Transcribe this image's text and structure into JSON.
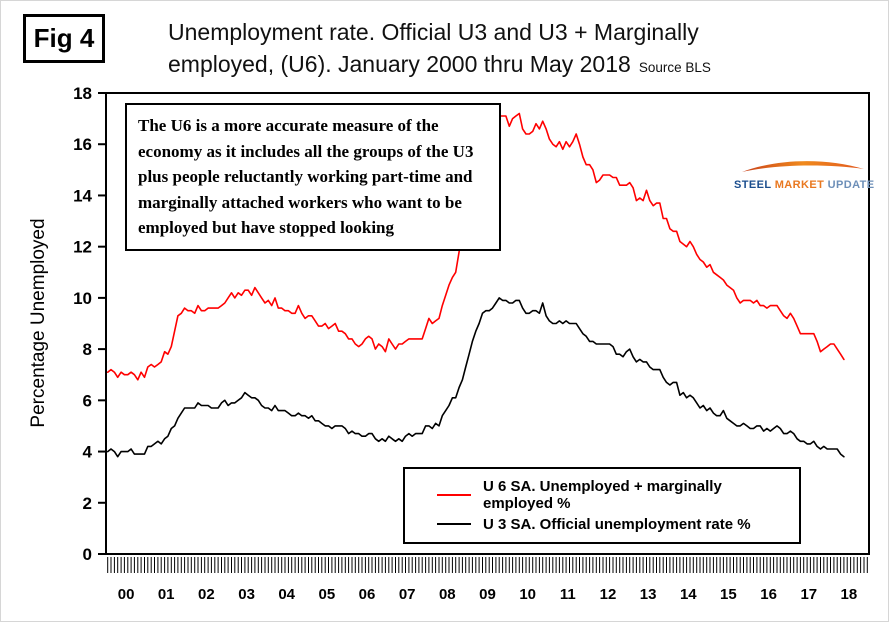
{
  "figure": {
    "label": "Fig 4"
  },
  "title": {
    "line1": "Unemployment rate. Official U3 and U3 + Marginally",
    "line2": "employed, (U6). January 2000 thru May 2018",
    "source": "Source BLS"
  },
  "annotation": "The U6 is a more accurate measure of the economy as it includes all the groups of the U3 plus people reluctantly working part-time and marginally attached workers who want to be employed but have stopped looking",
  "logo": {
    "word1": "STEEL",
    "word2": "MARKET",
    "word3": "UPDATE"
  },
  "chart_data": {
    "type": "line",
    "title": "Unemployment rate. Official U3 and U3 + Marginally employed, (U6). January 2000 thru May 2018",
    "xlabel": "",
    "ylabel": "Percentage Unemployed",
    "ylim": [
      0,
      18
    ],
    "ytick_step": 2,
    "grid": false,
    "legend_position": "inside bottom-right box",
    "x_start": "2000-01",
    "x_end": "2018-05",
    "axis_months": 228,
    "year_labels": [
      "00",
      "01",
      "02",
      "03",
      "04",
      "05",
      "06",
      "07",
      "08",
      "09",
      "10",
      "11",
      "12",
      "13",
      "14",
      "15",
      "16",
      "17",
      "18"
    ],
    "legend": [
      {
        "name": "U 6 SA. Unemployed + marginally employed %",
        "color": "#ff0000"
      },
      {
        "name": "U 3 SA. Official unemployment rate %",
        "color": "#000000"
      }
    ],
    "series": [
      {
        "id": "u6",
        "name": "U 6 SA. Unemployed + marginally employed %",
        "color": "#ff0000",
        "values": [
          7.1,
          7.2,
          7.1,
          6.9,
          7.1,
          7.0,
          7.0,
          7.1,
          7.0,
          6.8,
          7.1,
          6.9,
          7.3,
          7.4,
          7.3,
          7.4,
          7.5,
          7.9,
          7.8,
          8.1,
          8.7,
          9.3,
          9.4,
          9.6,
          9.5,
          9.5,
          9.4,
          9.7,
          9.5,
          9.5,
          9.6,
          9.6,
          9.6,
          9.6,
          9.7,
          9.8,
          10.0,
          10.2,
          10.0,
          10.2,
          10.1,
          10.3,
          10.3,
          10.1,
          10.4,
          10.2,
          10.0,
          9.8,
          9.9,
          9.7,
          10.0,
          9.6,
          9.6,
          9.5,
          9.5,
          9.4,
          9.4,
          9.7,
          9.4,
          9.2,
          9.3,
          9.3,
          9.1,
          8.9,
          8.9,
          9.0,
          8.8,
          8.9,
          9.0,
          8.7,
          8.7,
          8.6,
          8.4,
          8.4,
          8.2,
          8.1,
          8.2,
          8.4,
          8.5,
          8.4,
          8.0,
          8.2,
          8.1,
          7.9,
          8.4,
          8.2,
          8.0,
          8.2,
          8.2,
          8.3,
          8.4,
          8.4,
          8.4,
          8.4,
          8.4,
          8.8,
          9.2,
          9.0,
          9.1,
          9.2,
          9.7,
          10.1,
          10.5,
          10.8,
          11.0,
          11.8,
          12.6,
          13.6,
          14.2,
          15.2,
          15.8,
          15.9,
          16.5,
          16.5,
          16.4,
          16.7,
          16.7,
          17.1,
          17.1,
          17.1,
          16.7,
          17.0,
          17.1,
          17.2,
          16.6,
          16.4,
          16.4,
          16.5,
          16.8,
          16.6,
          16.9,
          16.6,
          16.2,
          16.0,
          15.9,
          16.1,
          15.8,
          16.1,
          15.9,
          16.1,
          16.4,
          16.0,
          15.5,
          15.2,
          15.2,
          15.0,
          14.5,
          14.6,
          14.8,
          14.8,
          14.8,
          14.7,
          14.7,
          14.4,
          14.4,
          14.4,
          14.5,
          14.3,
          13.8,
          13.9,
          13.8,
          14.2,
          13.8,
          13.6,
          13.7,
          13.7,
          13.1,
          13.1,
          12.7,
          12.6,
          12.6,
          12.2,
          12.1,
          12.0,
          12.2,
          12.0,
          11.7,
          11.5,
          11.4,
          11.2,
          11.3,
          11.0,
          10.9,
          10.8,
          10.7,
          10.5,
          10.4,
          10.3,
          10.0,
          9.8,
          9.9,
          9.9,
          9.9,
          9.8,
          9.9,
          9.7,
          9.7,
          9.6,
          9.7,
          9.7,
          9.7,
          9.5,
          9.3,
          9.2,
          9.4,
          9.2,
          8.9,
          8.6,
          8.6,
          8.6,
          8.6,
          8.6,
          8.3,
          7.9,
          8.0,
          8.1,
          8.2,
          8.2,
          8.0,
          7.8,
          7.6
        ]
      },
      {
        "id": "u3",
        "name": "U 3 SA. Official unemployment rate %",
        "color": "#000000",
        "values": [
          4.0,
          4.1,
          4.0,
          3.8,
          4.0,
          4.0,
          4.0,
          4.1,
          3.9,
          3.9,
          3.9,
          3.9,
          4.2,
          4.2,
          4.3,
          4.4,
          4.3,
          4.5,
          4.6,
          4.9,
          5.0,
          5.3,
          5.5,
          5.7,
          5.7,
          5.7,
          5.7,
          5.9,
          5.8,
          5.8,
          5.8,
          5.7,
          5.7,
          5.7,
          5.9,
          6.0,
          5.8,
          5.9,
          5.9,
          6.0,
          6.1,
          6.3,
          6.2,
          6.1,
          6.1,
          6.0,
          5.8,
          5.7,
          5.7,
          5.6,
          5.8,
          5.6,
          5.6,
          5.6,
          5.5,
          5.4,
          5.4,
          5.5,
          5.4,
          5.4,
          5.3,
          5.4,
          5.2,
          5.2,
          5.1,
          5.0,
          5.0,
          4.9,
          5.0,
          5.0,
          5.0,
          4.9,
          4.7,
          4.8,
          4.7,
          4.7,
          4.6,
          4.6,
          4.7,
          4.7,
          4.5,
          4.4,
          4.5,
          4.4,
          4.6,
          4.5,
          4.4,
          4.5,
          4.4,
          4.6,
          4.7,
          4.6,
          4.7,
          4.7,
          4.7,
          5.0,
          5.0,
          4.9,
          5.1,
          5.0,
          5.4,
          5.6,
          5.8,
          6.1,
          6.1,
          6.5,
          6.8,
          7.3,
          7.8,
          8.3,
          8.7,
          9.0,
          9.4,
          9.5,
          9.5,
          9.6,
          9.8,
          10.0,
          9.9,
          9.9,
          9.8,
          9.8,
          9.9,
          9.9,
          9.6,
          9.4,
          9.4,
          9.5,
          9.5,
          9.4,
          9.8,
          9.3,
          9.1,
          9.0,
          9.0,
          9.1,
          9.0,
          9.1,
          9.0,
          9.0,
          9.0,
          8.8,
          8.6,
          8.5,
          8.3,
          8.3,
          8.2,
          8.2,
          8.2,
          8.2,
          8.2,
          8.1,
          7.8,
          7.8,
          7.7,
          7.9,
          8.0,
          7.7,
          7.5,
          7.6,
          7.5,
          7.5,
          7.3,
          7.2,
          7.2,
          7.2,
          6.9,
          6.7,
          6.6,
          6.7,
          6.7,
          6.2,
          6.3,
          6.1,
          6.2,
          6.1,
          5.9,
          5.7,
          5.8,
          5.6,
          5.7,
          5.5,
          5.4,
          5.4,
          5.6,
          5.3,
          5.2,
          5.1,
          5.0,
          5.0,
          5.1,
          5.0,
          4.9,
          4.9,
          5.0,
          5.0,
          4.8,
          4.9,
          4.8,
          4.9,
          5.0,
          4.9,
          4.7,
          4.7,
          4.8,
          4.7,
          4.5,
          4.4,
          4.4,
          4.3,
          4.3,
          4.4,
          4.2,
          4.1,
          4.2,
          4.1,
          4.1,
          4.1,
          4.1,
          3.9,
          3.8
        ]
      }
    ]
  }
}
